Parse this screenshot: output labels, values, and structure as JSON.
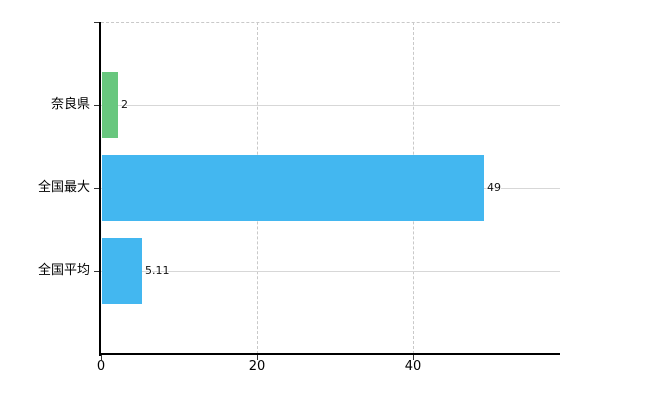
{
  "chart_data": {
    "type": "bar",
    "orientation": "horizontal",
    "title": "",
    "xlabel": "",
    "ylabel": "",
    "categories": [
      "奈良県",
      "全国最大",
      "全国平均"
    ],
    "values": [
      2,
      49,
      5.11
    ],
    "value_labels": [
      "2",
      "49",
      "5.11"
    ],
    "bar_colors": [
      "#68c77e",
      "#43b7f0",
      "#43b7f0"
    ],
    "x_tick_labels": [
      "0",
      "20",
      "40"
    ],
    "x_tick_values": [
      0,
      20,
      40
    ],
    "xlim": [
      0,
      58.8
    ],
    "grid": true,
    "legend_position": "none",
    "colors": {
      "background": "#ffffff",
      "axis": "#000000",
      "gridline_solid": "#d7d7d7",
      "gridline_dashed": "#c9c9c9",
      "text": "#000000",
      "value_text": "#111111"
    }
  }
}
